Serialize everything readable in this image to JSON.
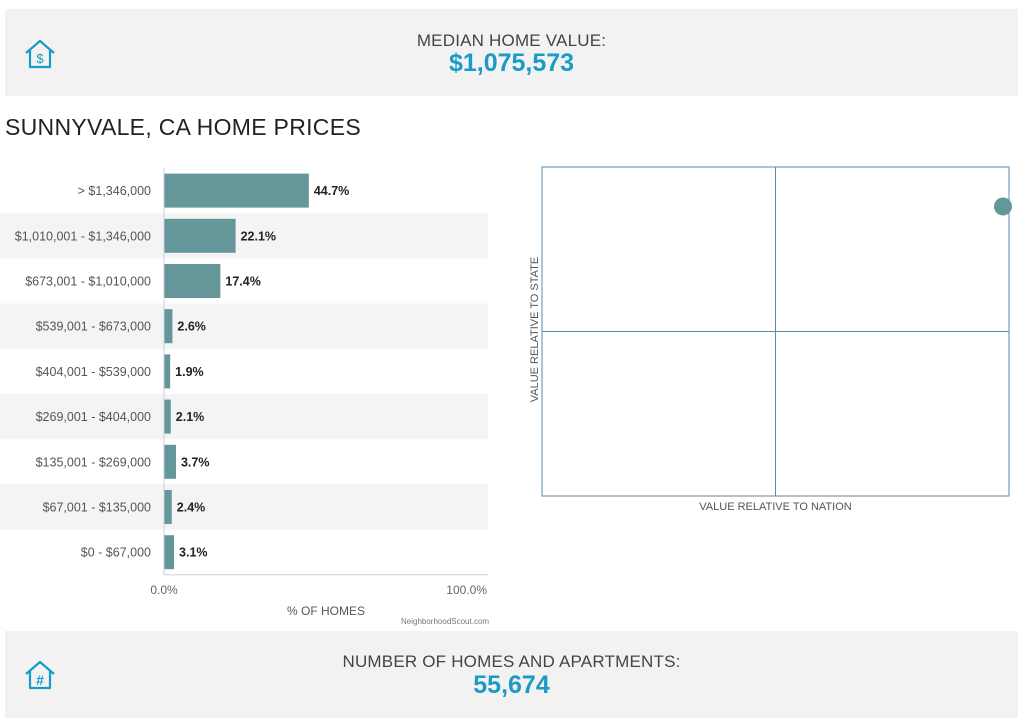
{
  "median_panel": {
    "title": "MEDIAN HOME VALUE:",
    "value": "$1,075,573",
    "icon": "house-dollar-icon"
  },
  "homes_panel": {
    "title": "NUMBER OF HOMES AND APARTMENTS:",
    "value": "55,674",
    "icon": "house-hash-icon"
  },
  "section_title": "SUNNYVALE, CA HOME PRICES",
  "credit": "NeighborhoodScout.com",
  "colors": {
    "accent": "#1a9bc5",
    "bar": "#65979a",
    "stripe": "#f4f4f4",
    "quad_border": "#5a8aa8"
  },
  "chart_data": [
    {
      "type": "bar",
      "orientation": "horizontal",
      "categories": [
        "> $1,346,000",
        "$1,010,001 - $1,346,000",
        "$673,001 - $1,010,000",
        "$539,001 - $673,000",
        "$404,001 - $539,000",
        "$269,001 - $404,000",
        "$135,001 - $269,000",
        "$67,001 - $135,000",
        "$0 - $67,000"
      ],
      "values": [
        44.7,
        22.1,
        17.4,
        2.6,
        1.9,
        2.1,
        3.7,
        2.4,
        3.1
      ],
      "value_labels": [
        "44.7%",
        "22.1%",
        "17.4%",
        "2.6%",
        "1.9%",
        "2.1%",
        "3.7%",
        "2.4%",
        "3.1%"
      ],
      "xlim": [
        0,
        100
      ],
      "tick_labels": [
        "0.0%",
        "100.0%"
      ],
      "xlabel": "% OF HOMES"
    },
    {
      "type": "scatter",
      "xlabel": "VALUE RELATIVE TO NATION",
      "ylabel": "VALUE RELATIVE TO STATE",
      "xlim": [
        0,
        1
      ],
      "ylim": [
        0,
        1
      ],
      "points": [
        {
          "x": 1.0,
          "y": 0.88
        }
      ],
      "quadrant_dividers": {
        "x": 0.5,
        "y": 0.5
      }
    }
  ]
}
